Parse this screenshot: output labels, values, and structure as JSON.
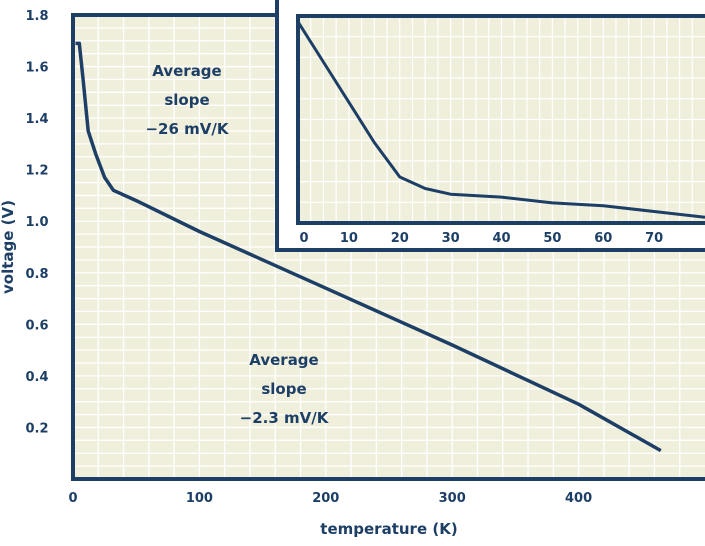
{
  "colors": {
    "plot_background": "#f0efdc",
    "grid": "#ffffff",
    "frame": "#1d3f66",
    "line": "#1d3f66",
    "text": "#1d3f66"
  },
  "chart_data": [
    {
      "type": "line",
      "title": "",
      "xlabel": "temperature (K)",
      "ylabel": "voltage (V)",
      "xlim": [
        0,
        500
      ],
      "ylim": [
        0,
        1.8
      ],
      "x_ticks": [
        "0",
        "100",
        "200",
        "300",
        "400"
      ],
      "y_ticks": [
        "0.2",
        "0.4",
        "0.6",
        "0.8",
        "1.0",
        "1.2",
        "1.4",
        "1.6",
        "1.8"
      ],
      "grid": true,
      "series": [
        {
          "x": [
            2,
            5,
            8,
            12,
            18,
            25,
            32,
            50,
            100,
            200,
            300,
            400,
            465
          ],
          "y": [
            1.69,
            1.69,
            1.55,
            1.35,
            1.26,
            1.17,
            1.12,
            1.08,
            0.96,
            0.74,
            0.52,
            0.29,
            0.11
          ]
        }
      ],
      "annotations": [
        {
          "lines": [
            "Average",
            "slope",
            "−26 mV/K"
          ]
        },
        {
          "lines": [
            "Average",
            "slope",
            "−2.3 mV/K"
          ]
        }
      ]
    },
    {
      "type": "line",
      "title": "",
      "xlabel": "",
      "ylabel": "",
      "xlim": [
        0,
        80
      ],
      "ylim": [
        1.0,
        1.72
      ],
      "x_ticks": [
        "0",
        "10",
        "20",
        "30",
        "40",
        "50",
        "60",
        "70"
      ],
      "grid": true,
      "series": [
        {
          "x": [
            0,
            5,
            10,
            15,
            20,
            25,
            30,
            40,
            50,
            60,
            70,
            80
          ],
          "y": [
            1.7,
            1.56,
            1.42,
            1.28,
            1.16,
            1.12,
            1.1,
            1.09,
            1.07,
            1.06,
            1.04,
            1.02
          ]
        }
      ]
    }
  ]
}
